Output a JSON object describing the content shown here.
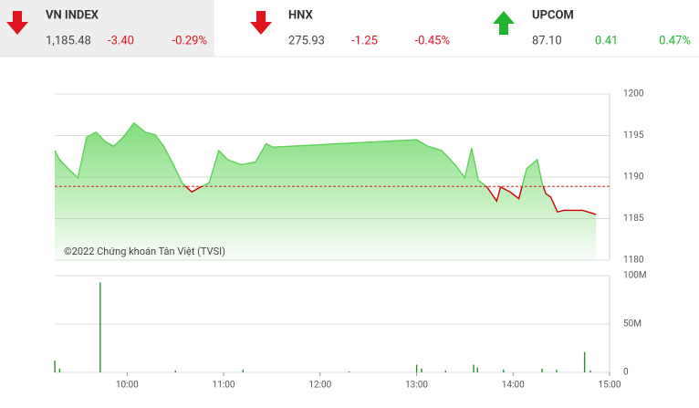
{
  "indices": [
    {
      "name": "VN INDEX",
      "value": "1,185.48",
      "change": "-3.40",
      "percent": "-0.29%"
    },
    {
      "name": "HNX",
      "value": "275.93",
      "change": "-1.25",
      "percent": "-0.45%"
    },
    {
      "name": "UPCOM",
      "value": "87.10",
      "change": "0.41",
      "percent": "0.47%"
    }
  ],
  "chart_data": [
    {
      "type": "line",
      "annotation": "©2022 Chứng khoán Tân Việt (TVSI)",
      "x": [
        9.25,
        9.3,
        9.39,
        9.49,
        9.58,
        9.68,
        9.77,
        9.86,
        9.96,
        10.07,
        10.19,
        10.29,
        10.38,
        10.48,
        10.57,
        10.67,
        10.76,
        10.85,
        10.95,
        11.04,
        11.18,
        11.33,
        11.44,
        11.51,
        13.0,
        13.12,
        13.26,
        13.4,
        13.5,
        13.57,
        13.64,
        13.73,
        13.83,
        13.87,
        13.97,
        14.06,
        14.14,
        14.25,
        14.3,
        14.34,
        14.39,
        14.46,
        14.53,
        14.72,
        14.86
      ],
      "series": [
        {
          "color": "#5fcf5a",
          "values": [
            1193.2,
            1192.1,
            1191.0,
            1189.9,
            1194.8,
            1195.4,
            1194.3,
            1193.7,
            1194.8,
            1196.5,
            1195.4,
            1195.1,
            1193.7,
            1191.5,
            1189.3,
            1188.2,
            1188.8,
            1189.3,
            1193.2,
            1192.1,
            1191.5,
            1191.8,
            1194.0,
            1193.6,
            1194.5,
            1193.7,
            1193.2,
            1191.5,
            1189.9,
            1193.5,
            1189.6,
            1188.8,
            1187.1,
            1188.8,
            1188.2,
            1187.4,
            1191.0,
            1192.1,
            1189.3,
            1188.0,
            1187.6,
            1185.8,
            1186.0,
            1186.0,
            1185.5
          ]
        }
      ],
      "reference_value": 1188.88,
      "reference_color": "#d40000",
      "xlim": [
        9.25,
        15
      ],
      "ylim": [
        1180,
        1200
      ],
      "yticks": [
        1180,
        1185,
        1190,
        1195,
        1200
      ],
      "grid": true
    },
    {
      "type": "bar",
      "x": [
        9.25,
        9.3,
        9.72,
        10.5,
        11.2,
        12.3,
        13.0,
        13.05,
        13.3,
        13.59,
        13.63,
        13.9,
        14.3,
        14.45,
        14.74,
        14.8
      ],
      "series": [
        {
          "color": "#2e8b2e",
          "values": [
            12,
            4,
            93,
            2,
            3,
            1,
            8,
            4,
            2,
            8,
            5,
            3,
            4,
            3,
            21,
            2
          ]
        }
      ],
      "xlim": [
        9.25,
        15
      ],
      "xticks": [
        {
          "value": 10,
          "label": "10:00"
        },
        {
          "value": 11,
          "label": "11:00"
        },
        {
          "value": 12,
          "label": "12:00"
        },
        {
          "value": 13,
          "label": "13:00"
        },
        {
          "value": 14,
          "label": "14:00"
        },
        {
          "value": 15,
          "label": "15:00"
        }
      ],
      "ylim": [
        0,
        100
      ],
      "yticks": [
        0,
        {
          "value": 50,
          "label": "50M"
        },
        {
          "value": 100,
          "label": "100M"
        }
      ],
      "grid": true
    }
  ]
}
